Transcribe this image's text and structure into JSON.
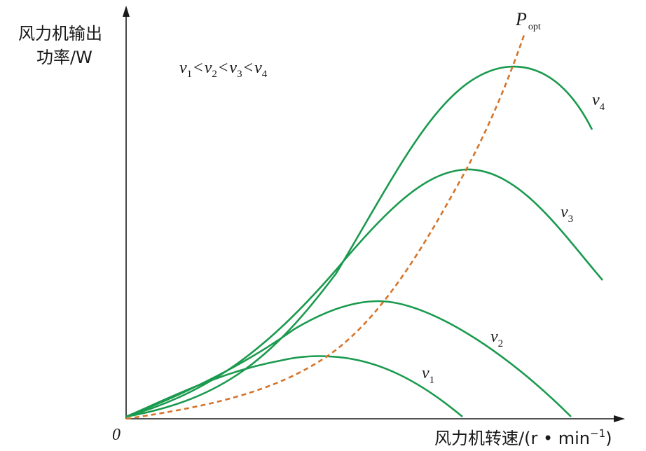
{
  "axes": {
    "y_label_line1": "风力机输出",
    "y_label_line2": "功率/W",
    "x_label": "风力机转速/(r • min",
    "x_label_exp": "−1",
    "x_label_close": ")",
    "origin": "0"
  },
  "condition": {
    "v": "v",
    "s1": "1",
    "s2": "2",
    "s3": "3",
    "s4": "4",
    "lt": "<"
  },
  "curves": [
    {
      "id": "v1",
      "name": "v",
      "sub": "1"
    },
    {
      "id": "v2",
      "name": "v",
      "sub": "2"
    },
    {
      "id": "v3",
      "name": "v",
      "sub": "3"
    },
    {
      "id": "v4",
      "name": "v",
      "sub": "4"
    }
  ],
  "popt": {
    "name": "P",
    "sub": "opt"
  },
  "colors": {
    "curve": "#1a9a4e",
    "popt": "#d4742a",
    "axis": "#1a1a1a"
  }
}
